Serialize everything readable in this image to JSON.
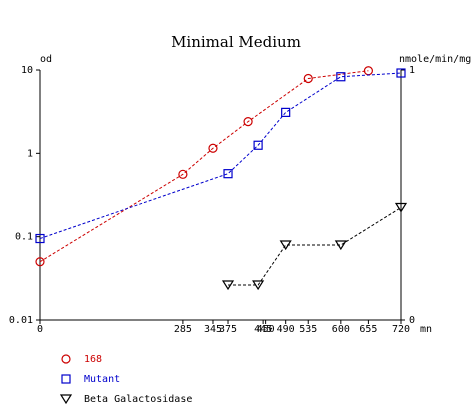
{
  "chart_data": {
    "type": "line",
    "title": "Minimal Medium",
    "xlabel": "",
    "x_unit": "mn",
    "ylabel_left": "od",
    "ylabel_right": "nmole/min/mg",
    "y_left_scale": "log",
    "y_left_lim": [
      0.01,
      10
    ],
    "y_left_ticks": [
      "0.01",
      "0.1",
      "1",
      "10"
    ],
    "y_left_tick_values": [
      0.01,
      0.1,
      1,
      10
    ],
    "y_right_lim": [
      0,
      1
    ],
    "y_right_ticks": [
      "0",
      "1"
    ],
    "y_right_tick_values": [
      0,
      1
    ],
    "x_lim": [
      0,
      720
    ],
    "x_ticks": [
      "0",
      "285",
      "345",
      "375",
      "445",
      "450",
      "490",
      "535",
      "600",
      "655",
      "720"
    ],
    "x_tick_values": [
      0,
      285,
      345,
      375,
      445,
      450,
      490,
      535,
      600,
      655,
      720
    ],
    "grid": false,
    "legend_position": "bottom-left",
    "series": [
      {
        "name": "168",
        "axis": "left",
        "color": "#cc0000",
        "marker": "circle",
        "x": [
          0,
          285,
          345,
          415,
          535,
          655
        ],
        "y": [
          0.05,
          0.56,
          1.15,
          2.4,
          7.9,
          9.8
        ]
      },
      {
        "name": "Mutant",
        "axis": "left",
        "color": "#0000cc",
        "marker": "square",
        "x": [
          0,
          375,
          435,
          490,
          600,
          720
        ],
        "y": [
          0.095,
          0.57,
          1.25,
          3.1,
          8.3,
          9.2
        ]
      },
      {
        "name": "Beta Galactosidase",
        "axis": "right",
        "color": "#000000",
        "marker": "triangle-down",
        "x": [
          375,
          435,
          490,
          600,
          720
        ],
        "y": [
          0.14,
          0.14,
          0.3,
          0.3,
          0.45
        ]
      }
    ]
  }
}
